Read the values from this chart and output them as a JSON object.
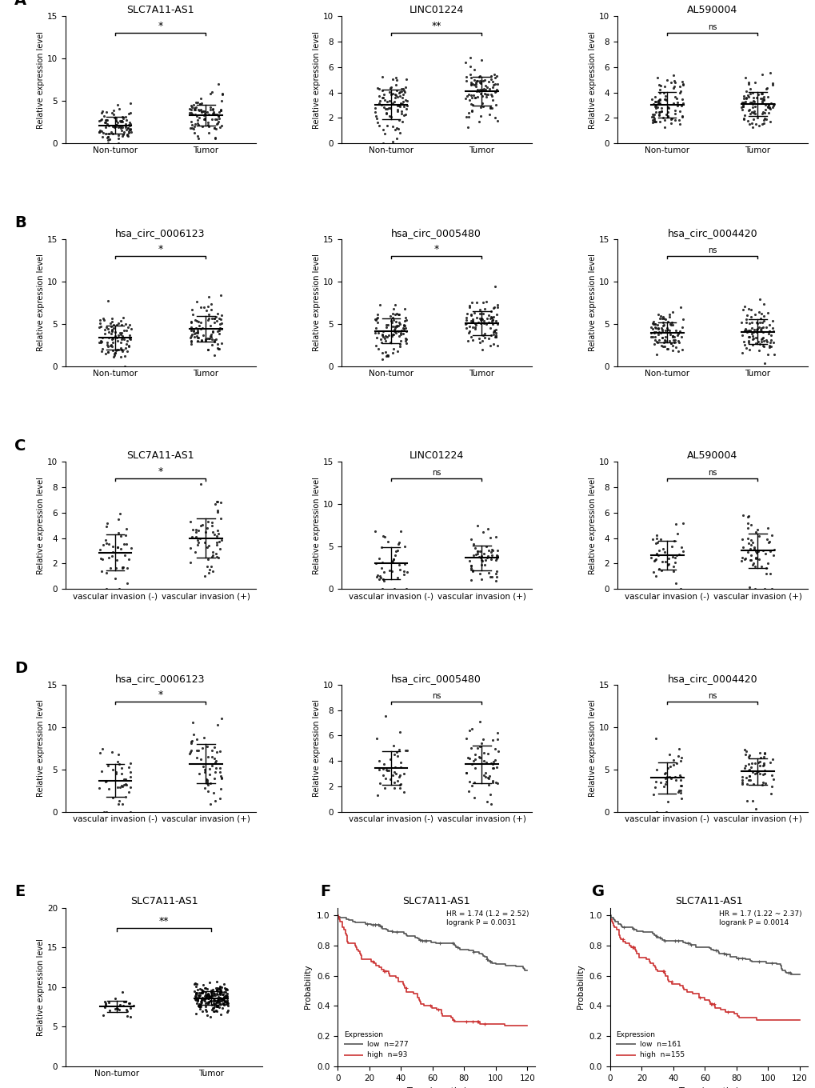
{
  "panel_A": {
    "plots": [
      {
        "title": "SLC7A11-AS1",
        "groups": [
          "Non-tumor",
          "Tumor"
        ],
        "ylim": [
          0,
          15
        ],
        "yticks": [
          0,
          5,
          10,
          15
        ],
        "sig": "*",
        "n1": 90,
        "n2": 90,
        "seed1": 1,
        "seed2": 2,
        "mu1": 2.2,
        "sd1": 1.0,
        "mu2": 3.3,
        "sd2": 1.2
      },
      {
        "title": "LINC01224",
        "groups": [
          "Non-tumor",
          "Tumor"
        ],
        "ylim": [
          0,
          10
        ],
        "yticks": [
          0,
          2,
          4,
          6,
          8,
          10
        ],
        "sig": "**",
        "n1": 90,
        "n2": 90,
        "seed1": 3,
        "seed2": 4,
        "mu1": 3.0,
        "sd1": 1.1,
        "mu2": 3.9,
        "sd2": 1.2
      },
      {
        "title": "AL590004",
        "groups": [
          "Non-tumor",
          "Tumor"
        ],
        "ylim": [
          0,
          10
        ],
        "yticks": [
          0,
          2,
          4,
          6,
          8,
          10
        ],
        "sig": "ns",
        "n1": 90,
        "n2": 90,
        "seed1": 5,
        "seed2": 6,
        "mu1": 3.0,
        "sd1": 1.0,
        "mu2": 3.1,
        "sd2": 1.0
      }
    ]
  },
  "panel_B": {
    "plots": [
      {
        "title": "hsa_circ_0006123",
        "groups": [
          "Non-tumor",
          "Tumor"
        ],
        "ylim": [
          0,
          15
        ],
        "yticks": [
          0,
          5,
          10,
          15
        ],
        "sig": "*",
        "n1": 90,
        "n2": 90,
        "seed1": 7,
        "seed2": 8,
        "mu1": 3.5,
        "sd1": 1.3,
        "mu2": 4.3,
        "sd2": 1.5
      },
      {
        "title": "hsa_circ_0005480",
        "groups": [
          "Non-tumor",
          "Tumor"
        ],
        "ylim": [
          0,
          15
        ],
        "yticks": [
          0,
          5,
          10,
          15
        ],
        "sig": "*",
        "n1": 90,
        "n2": 90,
        "seed1": 9,
        "seed2": 10,
        "mu1": 4.0,
        "sd1": 1.4,
        "mu2": 5.0,
        "sd2": 1.4
      },
      {
        "title": "hsa_circ_0004420",
        "groups": [
          "Non-tumor",
          "Tumor"
        ],
        "ylim": [
          0,
          15
        ],
        "yticks": [
          0,
          5,
          10,
          15
        ],
        "sig": "ns",
        "n1": 90,
        "n2": 90,
        "seed1": 11,
        "seed2": 12,
        "mu1": 4.0,
        "sd1": 1.4,
        "mu2": 4.2,
        "sd2": 1.4
      }
    ]
  },
  "panel_C": {
    "plots": [
      {
        "title": "SLC7A11-AS1",
        "groups": [
          "vascular invasion (-)",
          "vascular invasion (+)"
        ],
        "ylim": [
          0,
          10
        ],
        "yticks": [
          0,
          2,
          4,
          6,
          8,
          10
        ],
        "sig": "*",
        "n1": 40,
        "n2": 55,
        "seed1": 13,
        "seed2": 14,
        "mu1": 3.0,
        "sd1": 1.4,
        "mu2": 4.0,
        "sd2": 1.5
      },
      {
        "title": "LINC01224",
        "groups": [
          "vascular invasion (-)",
          "vascular invasion (+)"
        ],
        "ylim": [
          0,
          15
        ],
        "yticks": [
          0,
          5,
          10,
          15
        ],
        "sig": "ns",
        "n1": 40,
        "n2": 55,
        "seed1": 15,
        "seed2": 16,
        "mu1": 3.0,
        "sd1": 1.8,
        "mu2": 3.5,
        "sd2": 1.5
      },
      {
        "title": "AL590004",
        "groups": [
          "vascular invasion (-)",
          "vascular invasion (+)"
        ],
        "ylim": [
          0,
          10
        ],
        "yticks": [
          0,
          2,
          4,
          6,
          8,
          10
        ],
        "sig": "ns",
        "n1": 40,
        "n2": 55,
        "seed1": 17,
        "seed2": 18,
        "mu1": 2.7,
        "sd1": 1.3,
        "mu2": 3.3,
        "sd2": 1.7
      }
    ]
  },
  "panel_D": {
    "plots": [
      {
        "title": "hsa_circ_0006123",
        "groups": [
          "vascular invasion (-)",
          "vascular invasion (+)"
        ],
        "ylim": [
          0,
          15
        ],
        "yticks": [
          0,
          5,
          10,
          15
        ],
        "sig": "*",
        "n1": 40,
        "n2": 55,
        "seed1": 19,
        "seed2": 20,
        "mu1": 4.2,
        "sd1": 2.2,
        "mu2": 6.0,
        "sd2": 2.0
      },
      {
        "title": "hsa_circ_0005480",
        "groups": [
          "vascular invasion (-)",
          "vascular invasion (+)"
        ],
        "ylim": [
          0,
          10
        ],
        "yticks": [
          0,
          2,
          4,
          6,
          8,
          10
        ],
        "sig": "ns",
        "n1": 40,
        "n2": 55,
        "seed1": 21,
        "seed2": 22,
        "mu1": 3.3,
        "sd1": 1.3,
        "mu2": 3.8,
        "sd2": 1.5
      },
      {
        "title": "hsa_circ_0004420",
        "groups": [
          "vascular invasion (-)",
          "vascular invasion (+)"
        ],
        "ylim": [
          0,
          15
        ],
        "yticks": [
          0,
          5,
          10,
          15
        ],
        "sig": "ns",
        "n1": 40,
        "n2": 55,
        "seed1": 23,
        "seed2": 24,
        "mu1": 4.5,
        "sd1": 1.8,
        "mu2": 4.8,
        "sd2": 1.8
      }
    ]
  },
  "panel_E": {
    "title": "SLC7A11-AS1",
    "groups": [
      "Non-tumor",
      "Tumor"
    ],
    "ylim": [
      0,
      20
    ],
    "yticks": [
      0,
      5,
      10,
      15,
      20
    ],
    "sig": "**",
    "n1": 25,
    "n2": 200,
    "mu1": 7.5,
    "sd1": 0.7,
    "mu2": 8.6,
    "sd2": 0.9,
    "seed1": 25,
    "seed2": 26
  },
  "panel_F": {
    "title": "SLC7A11-AS1",
    "annotation": "HR = 1.74 (1.2 = 2.52)\nlogrank P = 0.0031",
    "legend_low": "low  n=277",
    "legend_high": "high  n=93",
    "color_low": "#555555",
    "color_high": "#cc3333"
  },
  "panel_G": {
    "title": "SLC7A11-AS1",
    "annotation": "HR = 1.7 (1.22 ~ 2.37)\nlogrank P = 0.0014",
    "legend_low": "low  n=161",
    "legend_high": "high  n=155",
    "color_low": "#555555",
    "color_high": "#cc3333"
  },
  "dot_color": "#111111",
  "dot_size": 5,
  "dot_alpha": 0.85,
  "ylabel": "Relative expression level"
}
